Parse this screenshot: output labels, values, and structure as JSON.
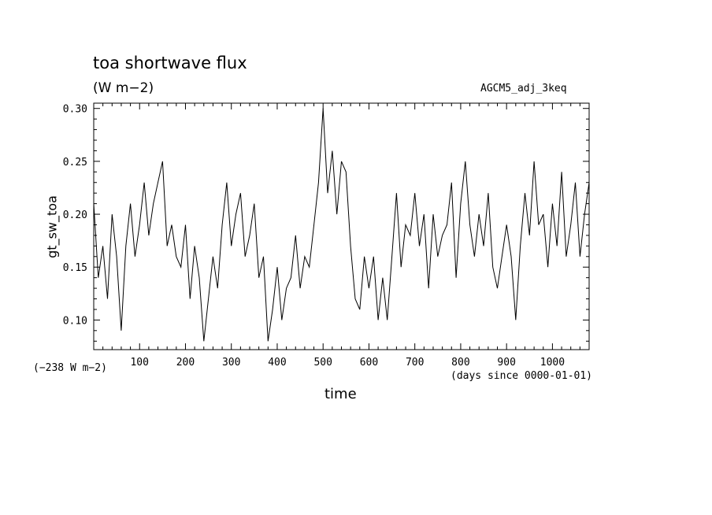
{
  "chart_data": {
    "type": "line",
    "title": "toa shortwave flux",
    "units_label": "(W m−2)",
    "run_label": "AGCM5_adj_3keq",
    "offset_label": "(−238 W m−2)",
    "xlabel": "time",
    "x_units_label": "(days since 0000-01-01)",
    "ylabel": "gt_sw_toa",
    "xlim": [
      0,
      1080
    ],
    "ylim": [
      0.072,
      0.305
    ],
    "x_ticks": [
      100,
      200,
      300,
      400,
      500,
      600,
      700,
      800,
      900,
      1000
    ],
    "x_tick_labels": [
      "100",
      "200",
      "300",
      "400",
      "500",
      "600",
      "700",
      "800",
      "900",
      "1000"
    ],
    "y_ticks": [
      0.1,
      0.15,
      0.2,
      0.25,
      0.3
    ],
    "y_tick_labels": [
      "0.10",
      "0.15",
      "0.20",
      "0.25",
      "0.30"
    ],
    "grid": false,
    "series": [
      {
        "x": [
          0,
          10,
          20,
          30,
          40,
          50,
          60,
          70,
          80,
          90,
          100,
          110,
          120,
          130,
          140,
          150,
          160,
          170,
          180,
          190,
          200,
          210,
          220,
          230,
          240,
          250,
          260,
          270,
          280,
          290,
          300,
          310,
          320,
          330,
          340,
          350,
          360,
          370,
          380,
          390,
          400,
          410,
          420,
          430,
          440,
          450,
          460,
          470,
          480,
          490,
          500,
          510,
          520,
          530,
          540,
          550,
          560,
          570,
          580,
          590,
          600,
          610,
          620,
          630,
          640,
          650,
          660,
          670,
          680,
          690,
          700,
          710,
          720,
          730,
          740,
          750,
          760,
          770,
          780,
          790,
          800,
          810,
          820,
          830,
          840,
          850,
          860,
          870,
          880,
          890,
          900,
          910,
          920,
          930,
          940,
          950,
          960,
          970,
          980,
          990,
          1000,
          1010,
          1020,
          1030,
          1040,
          1050,
          1060,
          1070,
          1080
        ],
        "values": [
          0.21,
          0.14,
          0.17,
          0.12,
          0.2,
          0.16,
          0.09,
          0.17,
          0.21,
          0.16,
          0.19,
          0.23,
          0.18,
          0.21,
          0.23,
          0.25,
          0.17,
          0.19,
          0.16,
          0.15,
          0.19,
          0.12,
          0.17,
          0.14,
          0.08,
          0.12,
          0.16,
          0.13,
          0.19,
          0.23,
          0.17,
          0.2,
          0.22,
          0.16,
          0.18,
          0.21,
          0.14,
          0.16,
          0.08,
          0.11,
          0.15,
          0.1,
          0.13,
          0.14,
          0.18,
          0.13,
          0.16,
          0.15,
          0.19,
          0.23,
          0.3,
          0.22,
          0.26,
          0.2,
          0.25,
          0.24,
          0.17,
          0.12,
          0.11,
          0.16,
          0.13,
          0.16,
          0.1,
          0.14,
          0.1,
          0.16,
          0.22,
          0.15,
          0.19,
          0.18,
          0.22,
          0.17,
          0.2,
          0.13,
          0.2,
          0.16,
          0.18,
          0.19,
          0.23,
          0.14,
          0.21,
          0.25,
          0.19,
          0.16,
          0.2,
          0.17,
          0.22,
          0.15,
          0.13,
          0.16,
          0.19,
          0.16,
          0.1,
          0.17,
          0.22,
          0.18,
          0.25,
          0.19,
          0.2,
          0.15,
          0.21,
          0.17,
          0.24,
          0.16,
          0.19,
          0.23,
          0.16,
          0.2,
          0.23
        ]
      }
    ]
  }
}
